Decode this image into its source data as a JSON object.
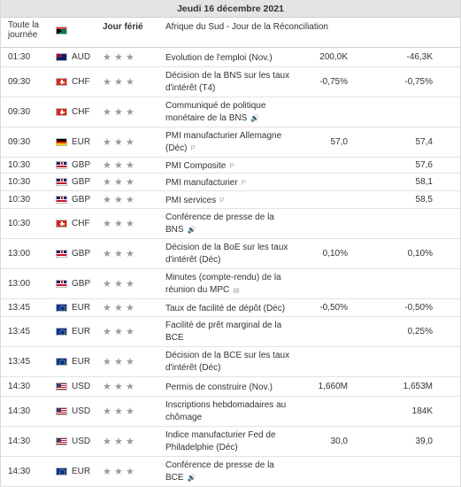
{
  "header": {
    "date": "Jeudi 16 décembre 2021"
  },
  "columns": {
    "time_line1": "Toute la",
    "time_line2": "journée",
    "holiday_label": "Jour férié"
  },
  "holiday": {
    "country_flag": "flag-za",
    "currency": "",
    "event": "Afrique du Sud - Jour de la Réconciliation"
  },
  "rows": [
    {
      "time": "01:30",
      "flag": "au",
      "currency": "AUD",
      "event": [
        "Evolution de l'emploi (Nov.)"
      ],
      "icon": "",
      "actual": "",
      "forecast": "200,0K",
      "previous": "-46,3K"
    },
    {
      "time": "09:30",
      "flag": "ch",
      "currency": "CHF",
      "event": [
        "Décision de la BNS sur les taux",
        "d'intérêt (T4)"
      ],
      "icon": "",
      "actual": "",
      "forecast": "-0,75%",
      "previous": "-0,75%"
    },
    {
      "time": "09:30",
      "flag": "ch",
      "currency": "CHF",
      "event": [
        "Communiqué de politique",
        "monétaire de la BNS"
      ],
      "icon": "speaker",
      "actual": "",
      "forecast": "",
      "previous": ""
    },
    {
      "time": "09:30",
      "flag": "de",
      "currency": "EUR",
      "event": [
        "PMI manufacturier Allemagne",
        "(Déc)"
      ],
      "icon": "preliminary",
      "actual": "",
      "forecast": "57,0",
      "previous": "57,4"
    },
    {
      "time": "10:30",
      "flag": "gb",
      "currency": "GBP",
      "event": [
        "PMI Composite"
      ],
      "icon": "preliminary",
      "actual": "",
      "forecast": "",
      "previous": "57,6"
    },
    {
      "time": "10:30",
      "flag": "gb",
      "currency": "GBP",
      "event": [
        "PMI manufacturier"
      ],
      "icon": "preliminary",
      "actual": "",
      "forecast": "",
      "previous": "58,1"
    },
    {
      "time": "10:30",
      "flag": "gb",
      "currency": "GBP",
      "event": [
        "PMI services"
      ],
      "icon": "preliminary",
      "actual": "",
      "forecast": "",
      "previous": "58,5"
    },
    {
      "time": "10:30",
      "flag": "ch",
      "currency": "CHF",
      "event": [
        "Conférence de presse de la",
        "BNS"
      ],
      "icon": "speaker",
      "actual": "",
      "forecast": "",
      "previous": ""
    },
    {
      "time": "13:00",
      "flag": "gb",
      "currency": "GBP",
      "event": [
        "Décision de la BoE sur les taux",
        "d'intérêt (Déc)"
      ],
      "icon": "",
      "actual": "",
      "forecast": "0,10%",
      "previous": "0,10%"
    },
    {
      "time": "13:00",
      "flag": "gb",
      "currency": "GBP",
      "event": [
        "Minutes (compte-rendu) de la",
        "réunion du MPC"
      ],
      "icon": "document",
      "actual": "",
      "forecast": "",
      "previous": ""
    },
    {
      "time": "13:45",
      "flag": "eu",
      "currency": "EUR",
      "event": [
        "Taux de facilité de dépôt (Déc)"
      ],
      "icon": "",
      "actual": "",
      "forecast": "-0,50%",
      "previous": "-0,50%"
    },
    {
      "time": "13:45",
      "flag": "eu",
      "currency": "EUR",
      "event": [
        "Facilité de prêt marginal de la",
        "BCE"
      ],
      "icon": "",
      "actual": "",
      "forecast": "",
      "previous": "0,25%"
    },
    {
      "time": "13:45",
      "flag": "eu",
      "currency": "EUR",
      "event": [
        "Décision de la BCE sur les taux",
        "d'intérêt (Déc)"
      ],
      "icon": "",
      "actual": "",
      "forecast": "",
      "previous": ""
    },
    {
      "time": "14:30",
      "flag": "us",
      "currency": "USD",
      "event": [
        "Permis de construire (Nov.)"
      ],
      "icon": "",
      "actual": "",
      "forecast": "1,660M",
      "previous": "1,653M"
    },
    {
      "time": "14:30",
      "flag": "us",
      "currency": "USD",
      "event": [
        "Inscriptions hebdomadaires au",
        "chômage"
      ],
      "icon": "",
      "actual": "",
      "forecast": "",
      "previous": "184K"
    },
    {
      "time": "14:30",
      "flag": "us",
      "currency": "USD",
      "event": [
        "Indice manufacturier Fed de",
        "Philadelphie (Déc)"
      ],
      "icon": "",
      "actual": "",
      "forecast": "30,0",
      "previous": "39,0"
    },
    {
      "time": "14:30",
      "flag": "eu",
      "currency": "EUR",
      "event": [
        "Conférence de presse de la",
        "BCE"
      ],
      "icon": "speaker",
      "actual": "",
      "forecast": "",
      "previous": ""
    }
  ],
  "colors": {
    "header_bg": "#e4e4e4",
    "star": "#9a9a9a",
    "border": "#e3e3e3"
  }
}
